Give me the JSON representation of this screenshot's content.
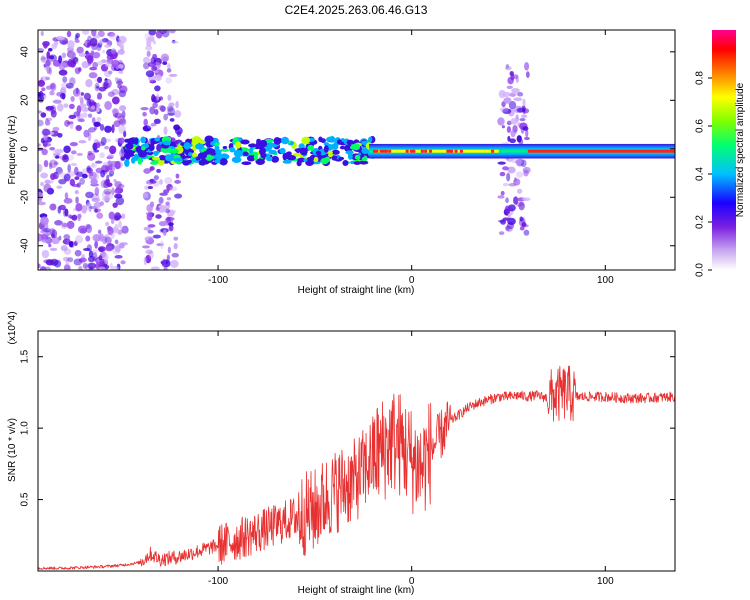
{
  "figure_title": "C2E4.2025.263.06.46.G13",
  "colors": {
    "snr_line": "#e83030",
    "frame": "#000000",
    "spectrogram_background": "#ffffff"
  },
  "chart_data": [
    {
      "type": "heatmap",
      "name": "spectrogram",
      "title": "C2E4.2025.263.06.46.G13",
      "xlabel": "Height of straight line (km)",
      "ylabel": "Frequency (Hz)",
      "xlim": [
        -193,
        136
      ],
      "ylim": [
        -50,
        49
      ],
      "xticks": [
        -100,
        0,
        100
      ],
      "yticks": [
        -40,
        -20,
        0,
        20,
        40
      ],
      "colorbar": {
        "label": "Normalized spectral amplitude",
        "range": [
          0,
          1
        ],
        "ticks": [
          "0.0",
          "0.2",
          "0.4",
          "0.6",
          "0.8"
        ],
        "stops": [
          "#ffffff",
          "#8a2be2",
          "#0000ff",
          "#00d0ff",
          "#00ff00",
          "#ffff00",
          "#ff8000",
          "#ff0000",
          "#ff00ff"
        ]
      },
      "carrier_band": {
        "frequency_hz": -1,
        "x_from_km": -148,
        "x_to_km": 136
      },
      "noise_regions_km": [
        [
          -193,
          -148
        ],
        [
          -138,
          -120
        ],
        [
          46,
          60
        ]
      ]
    },
    {
      "type": "line",
      "name": "snr",
      "xlabel": "Height of straight line (km)",
      "ylabel": "SNR (10 * v/v)",
      "y_multiplier": "(x10^4)",
      "xlim": [
        -193,
        136
      ],
      "ylim": [
        0,
        1.68
      ],
      "xticks": [
        -100,
        0,
        100
      ],
      "yticks": [
        0.5,
        1.0,
        1.5
      ],
      "ytick_labels": [
        "0.5",
        "1.0",
        "1.5"
      ],
      "series": [
        {
          "name": "SNR",
          "x": [
            -193,
            -180,
            -170,
            -160,
            -150,
            -140,
            -135,
            -130,
            -120,
            -110,
            -100,
            -90,
            -80,
            -70,
            -60,
            -50,
            -45,
            -40,
            -35,
            -30,
            -25,
            -20,
            -15,
            -10,
            -5,
            0,
            5,
            10,
            15,
            20,
            25,
            30,
            35,
            40,
            45,
            50,
            55,
            60,
            65,
            70,
            75,
            80,
            85,
            90,
            100,
            110,
            120,
            136
          ],
          "values": [
            0.02,
            0.02,
            0.025,
            0.03,
            0.04,
            0.06,
            0.12,
            0.08,
            0.1,
            0.14,
            0.18,
            0.22,
            0.27,
            0.32,
            0.38,
            0.42,
            0.5,
            0.55,
            0.6,
            0.62,
            0.7,
            0.8,
            0.85,
            0.92,
            0.88,
            0.78,
            0.72,
            0.85,
            0.95,
            1.05,
            1.1,
            1.15,
            1.18,
            1.2,
            1.22,
            1.22,
            1.23,
            1.22,
            1.23,
            1.21,
            1.23,
            1.25,
            1.22,
            1.22,
            1.22,
            1.21,
            1.21,
            1.22
          ]
        }
      ]
    }
  ]
}
